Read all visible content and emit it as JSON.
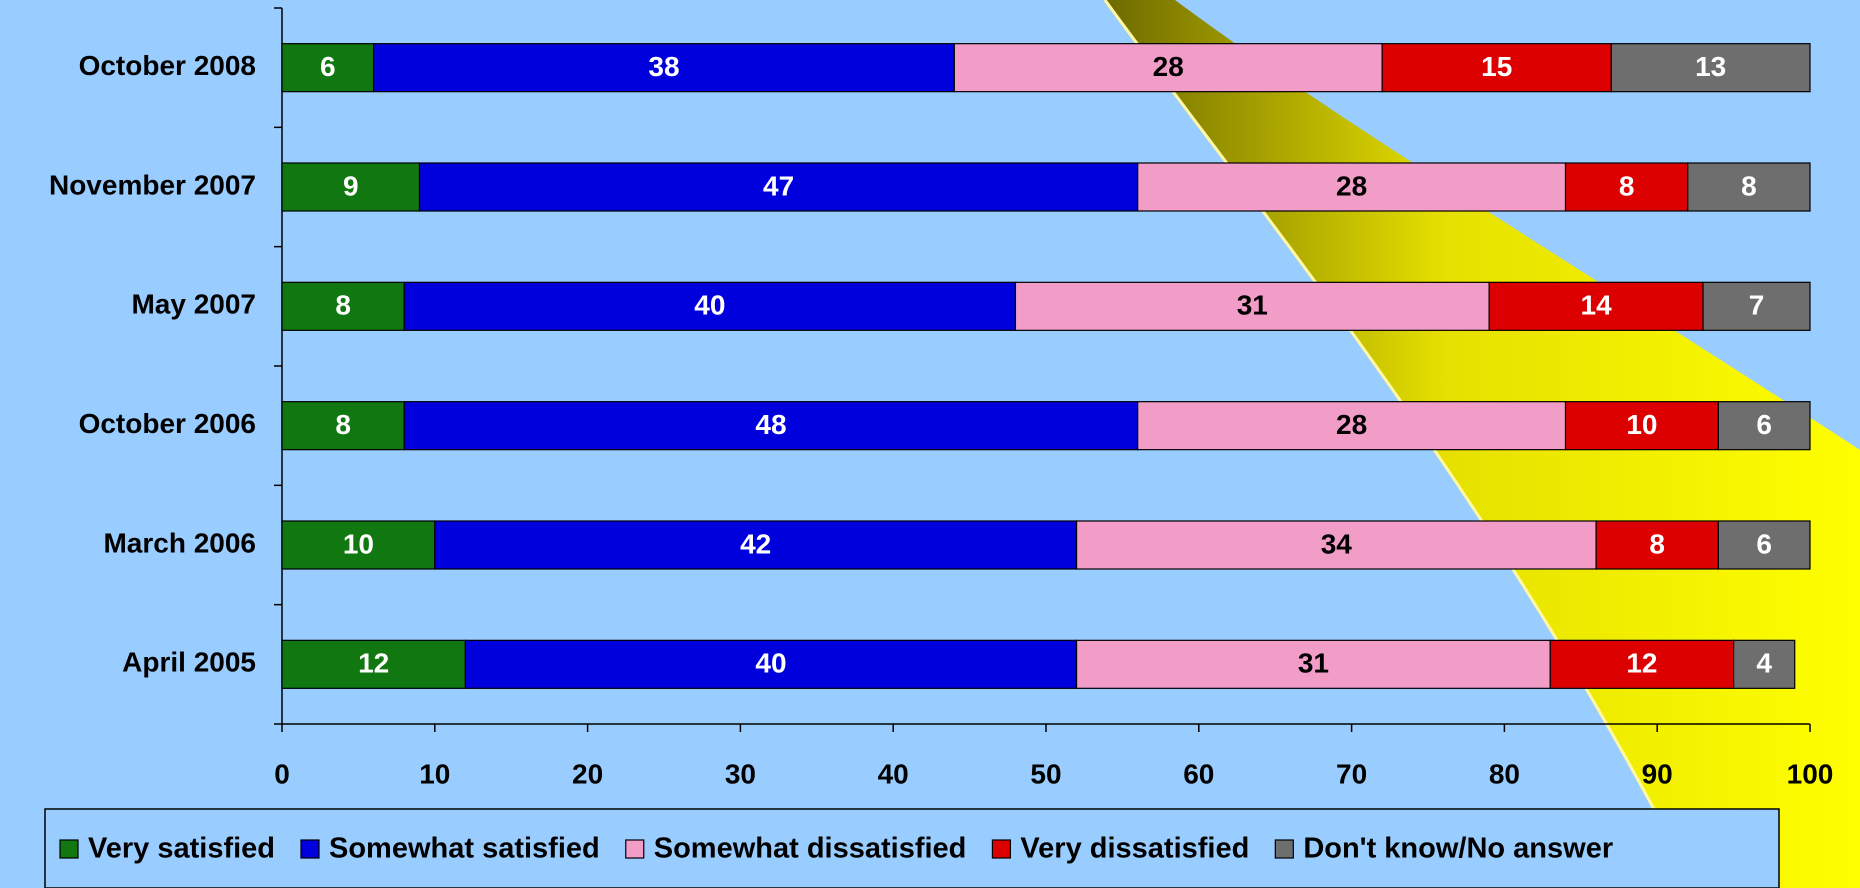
{
  "chart_data": {
    "type": "stacked-bar-horizontal",
    "categories": [
      "October 2008",
      "November 2007",
      "May 2007",
      "October 2006",
      "March 2006",
      "April 2005"
    ],
    "series": [
      {
        "name": "Very satisfied",
        "color": "#117711",
        "values": [
          6,
          9,
          8,
          8,
          10,
          12
        ]
      },
      {
        "name": "Somewhat satisfied",
        "color": "#0000dd",
        "values": [
          38,
          47,
          40,
          48,
          42,
          40
        ]
      },
      {
        "name": "Somewhat dissatisfied",
        "color": "#f29cc8",
        "values": [
          28,
          28,
          31,
          28,
          34,
          31
        ]
      },
      {
        "name": "Very dissatisfied",
        "color": "#dd0000",
        "values": [
          15,
          8,
          14,
          10,
          8,
          12
        ]
      },
      {
        "name": "Don't know/No answer",
        "color": "#6e6e6e",
        "values": [
          13,
          8,
          7,
          6,
          6,
          4
        ]
      }
    ],
    "xlim": [
      0,
      100
    ],
    "xticks": [
      0,
      10,
      20,
      30,
      40,
      50,
      60,
      70,
      80,
      90,
      100
    ],
    "legend": "bottom"
  }
}
